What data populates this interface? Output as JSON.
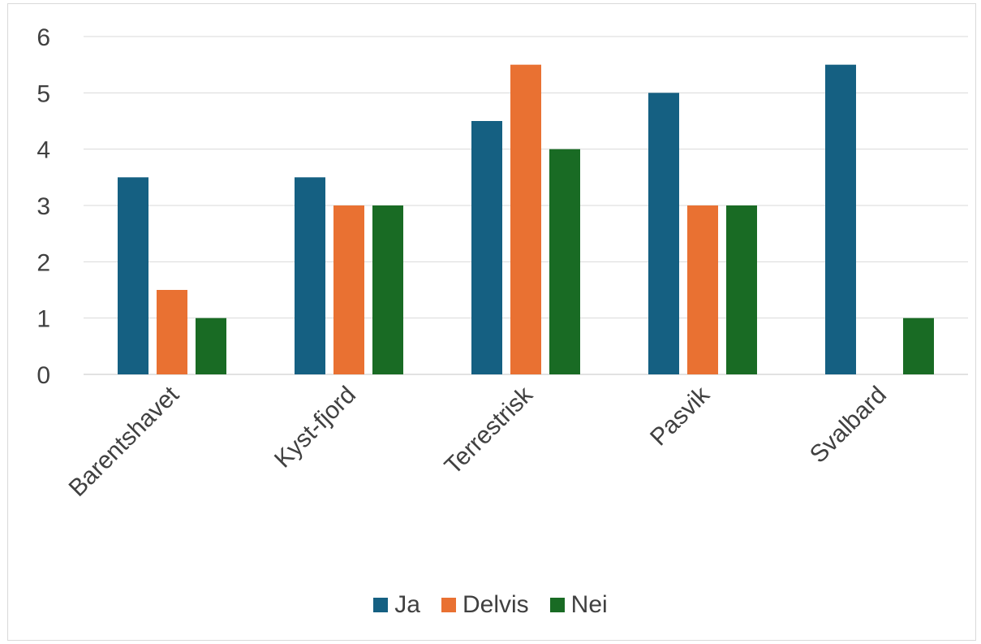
{
  "chart_data": {
    "type": "bar",
    "categories": [
      "Barentshavet",
      "Kyst-fjord",
      "Terrestrisk",
      "Pasvik",
      "Svalbard"
    ],
    "series": [
      {
        "name": "Ja",
        "values": [
          3.5,
          3.5,
          4.5,
          5,
          5.5
        ],
        "color": "#156082"
      },
      {
        "name": "Delvis",
        "values": [
          1.5,
          3,
          5.5,
          3,
          0
        ],
        "color": "#e97132"
      },
      {
        "name": "Nei",
        "values": [
          1,
          3,
          4,
          3,
          1
        ],
        "color": "#196b24"
      }
    ],
    "ylim": [
      0,
      6
    ],
    "yticks": [
      0,
      1,
      2,
      3,
      4,
      5,
      6
    ],
    "grid": true,
    "legend": "bottom"
  }
}
